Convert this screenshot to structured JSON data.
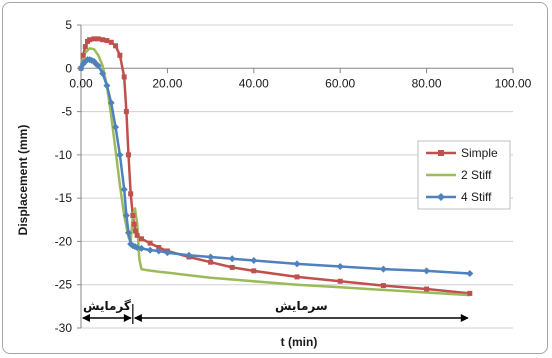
{
  "chart_data": {
    "type": "line",
    "title": "",
    "xlabel": "t (min)",
    "ylabel": "Displacement (mm)",
    "xlim": [
      0,
      100
    ],
    "ylim": [
      -30,
      5
    ],
    "xticks": [
      0,
      20,
      40,
      60,
      80,
      100
    ],
    "yticks": [
      5,
      0,
      -5,
      -10,
      -15,
      -20,
      -25,
      -30
    ],
    "xtick_labels": [
      "0.00",
      "20.00",
      "40.00",
      "60.00",
      "80.00",
      "100.00"
    ],
    "ytick_labels": [
      "5",
      "0",
      "-5",
      "-10",
      "-15",
      "-20",
      "-25",
      "-30"
    ],
    "grid": "horizontal",
    "legend_position": "right",
    "series": [
      {
        "name": "Simple",
        "color": "#c0504d",
        "marker": "square",
        "x": [
          0,
          0.5,
          1,
          1.5,
          2,
          3,
          4,
          5,
          6,
          7,
          8,
          9,
          10,
          10.5,
          11,
          11.5,
          12,
          12.3,
          12.6,
          13,
          14,
          16,
          18,
          20,
          25,
          30,
          35,
          40,
          50,
          60,
          70,
          80,
          90
        ],
        "y": [
          0,
          1.5,
          2.5,
          3.1,
          3.3,
          3.4,
          3.4,
          3.3,
          3.2,
          3.0,
          2.6,
          1.5,
          -1.0,
          -5.0,
          -10.0,
          -14.5,
          -17.0,
          -18.0,
          -18.8,
          -19.3,
          -19.7,
          -20.2,
          -20.7,
          -21.1,
          -21.8,
          -22.4,
          -23.0,
          -23.4,
          -24.1,
          -24.6,
          -25.1,
          -25.5,
          -26.0
        ]
      },
      {
        "name": "2 Stiff",
        "color": "#9bbb59",
        "marker": "none",
        "x": [
          0,
          0.5,
          1,
          2,
          3,
          4,
          5,
          6,
          7,
          8,
          9,
          10,
          11,
          11.5,
          12,
          12.5,
          13,
          13.5,
          14,
          15,
          18,
          20,
          25,
          30,
          40,
          50,
          60,
          70,
          80,
          90
        ],
        "y": [
          0,
          1.2,
          1.8,
          2.3,
          2.2,
          1.5,
          0.3,
          -2.0,
          -5.5,
          -9.5,
          -13.5,
          -17.0,
          -19.5,
          -20.0,
          -17.0,
          -16.2,
          -18.0,
          -22.0,
          -23.2,
          -23.3,
          -23.5,
          -23.6,
          -23.9,
          -24.2,
          -24.6,
          -25.0,
          -25.3,
          -25.6,
          -25.9,
          -26.2
        ]
      },
      {
        "name": "4 Stiff",
        "color": "#4f81bd",
        "marker": "diamond",
        "x": [
          0,
          0.5,
          1,
          1.5,
          2,
          2.5,
          3,
          3.5,
          4,
          5,
          6,
          7,
          8,
          9,
          10,
          10.5,
          11,
          11.5,
          12,
          12.5,
          13,
          14,
          16,
          18,
          20,
          25,
          30,
          35,
          40,
          50,
          60,
          70,
          80,
          90
        ],
        "y": [
          0,
          0.5,
          0.8,
          1.0,
          1.0,
          0.9,
          0.8,
          0.5,
          0.3,
          -0.6,
          -2.0,
          -4.0,
          -6.8,
          -10.0,
          -14.0,
          -17.0,
          -19.0,
          -20.3,
          -20.5,
          -20.6,
          -20.7,
          -20.8,
          -21.0,
          -21.1,
          -21.3,
          -21.6,
          -21.8,
          -22.0,
          -22.2,
          -22.6,
          -22.9,
          -23.2,
          -23.4,
          -23.7
        ]
      }
    ],
    "annotations": [
      {
        "text": "گرمایش",
        "x_start": 0,
        "x_end": 12
      },
      {
        "text": "سرمایش",
        "x_start": 12,
        "x_end": 90
      }
    ]
  }
}
